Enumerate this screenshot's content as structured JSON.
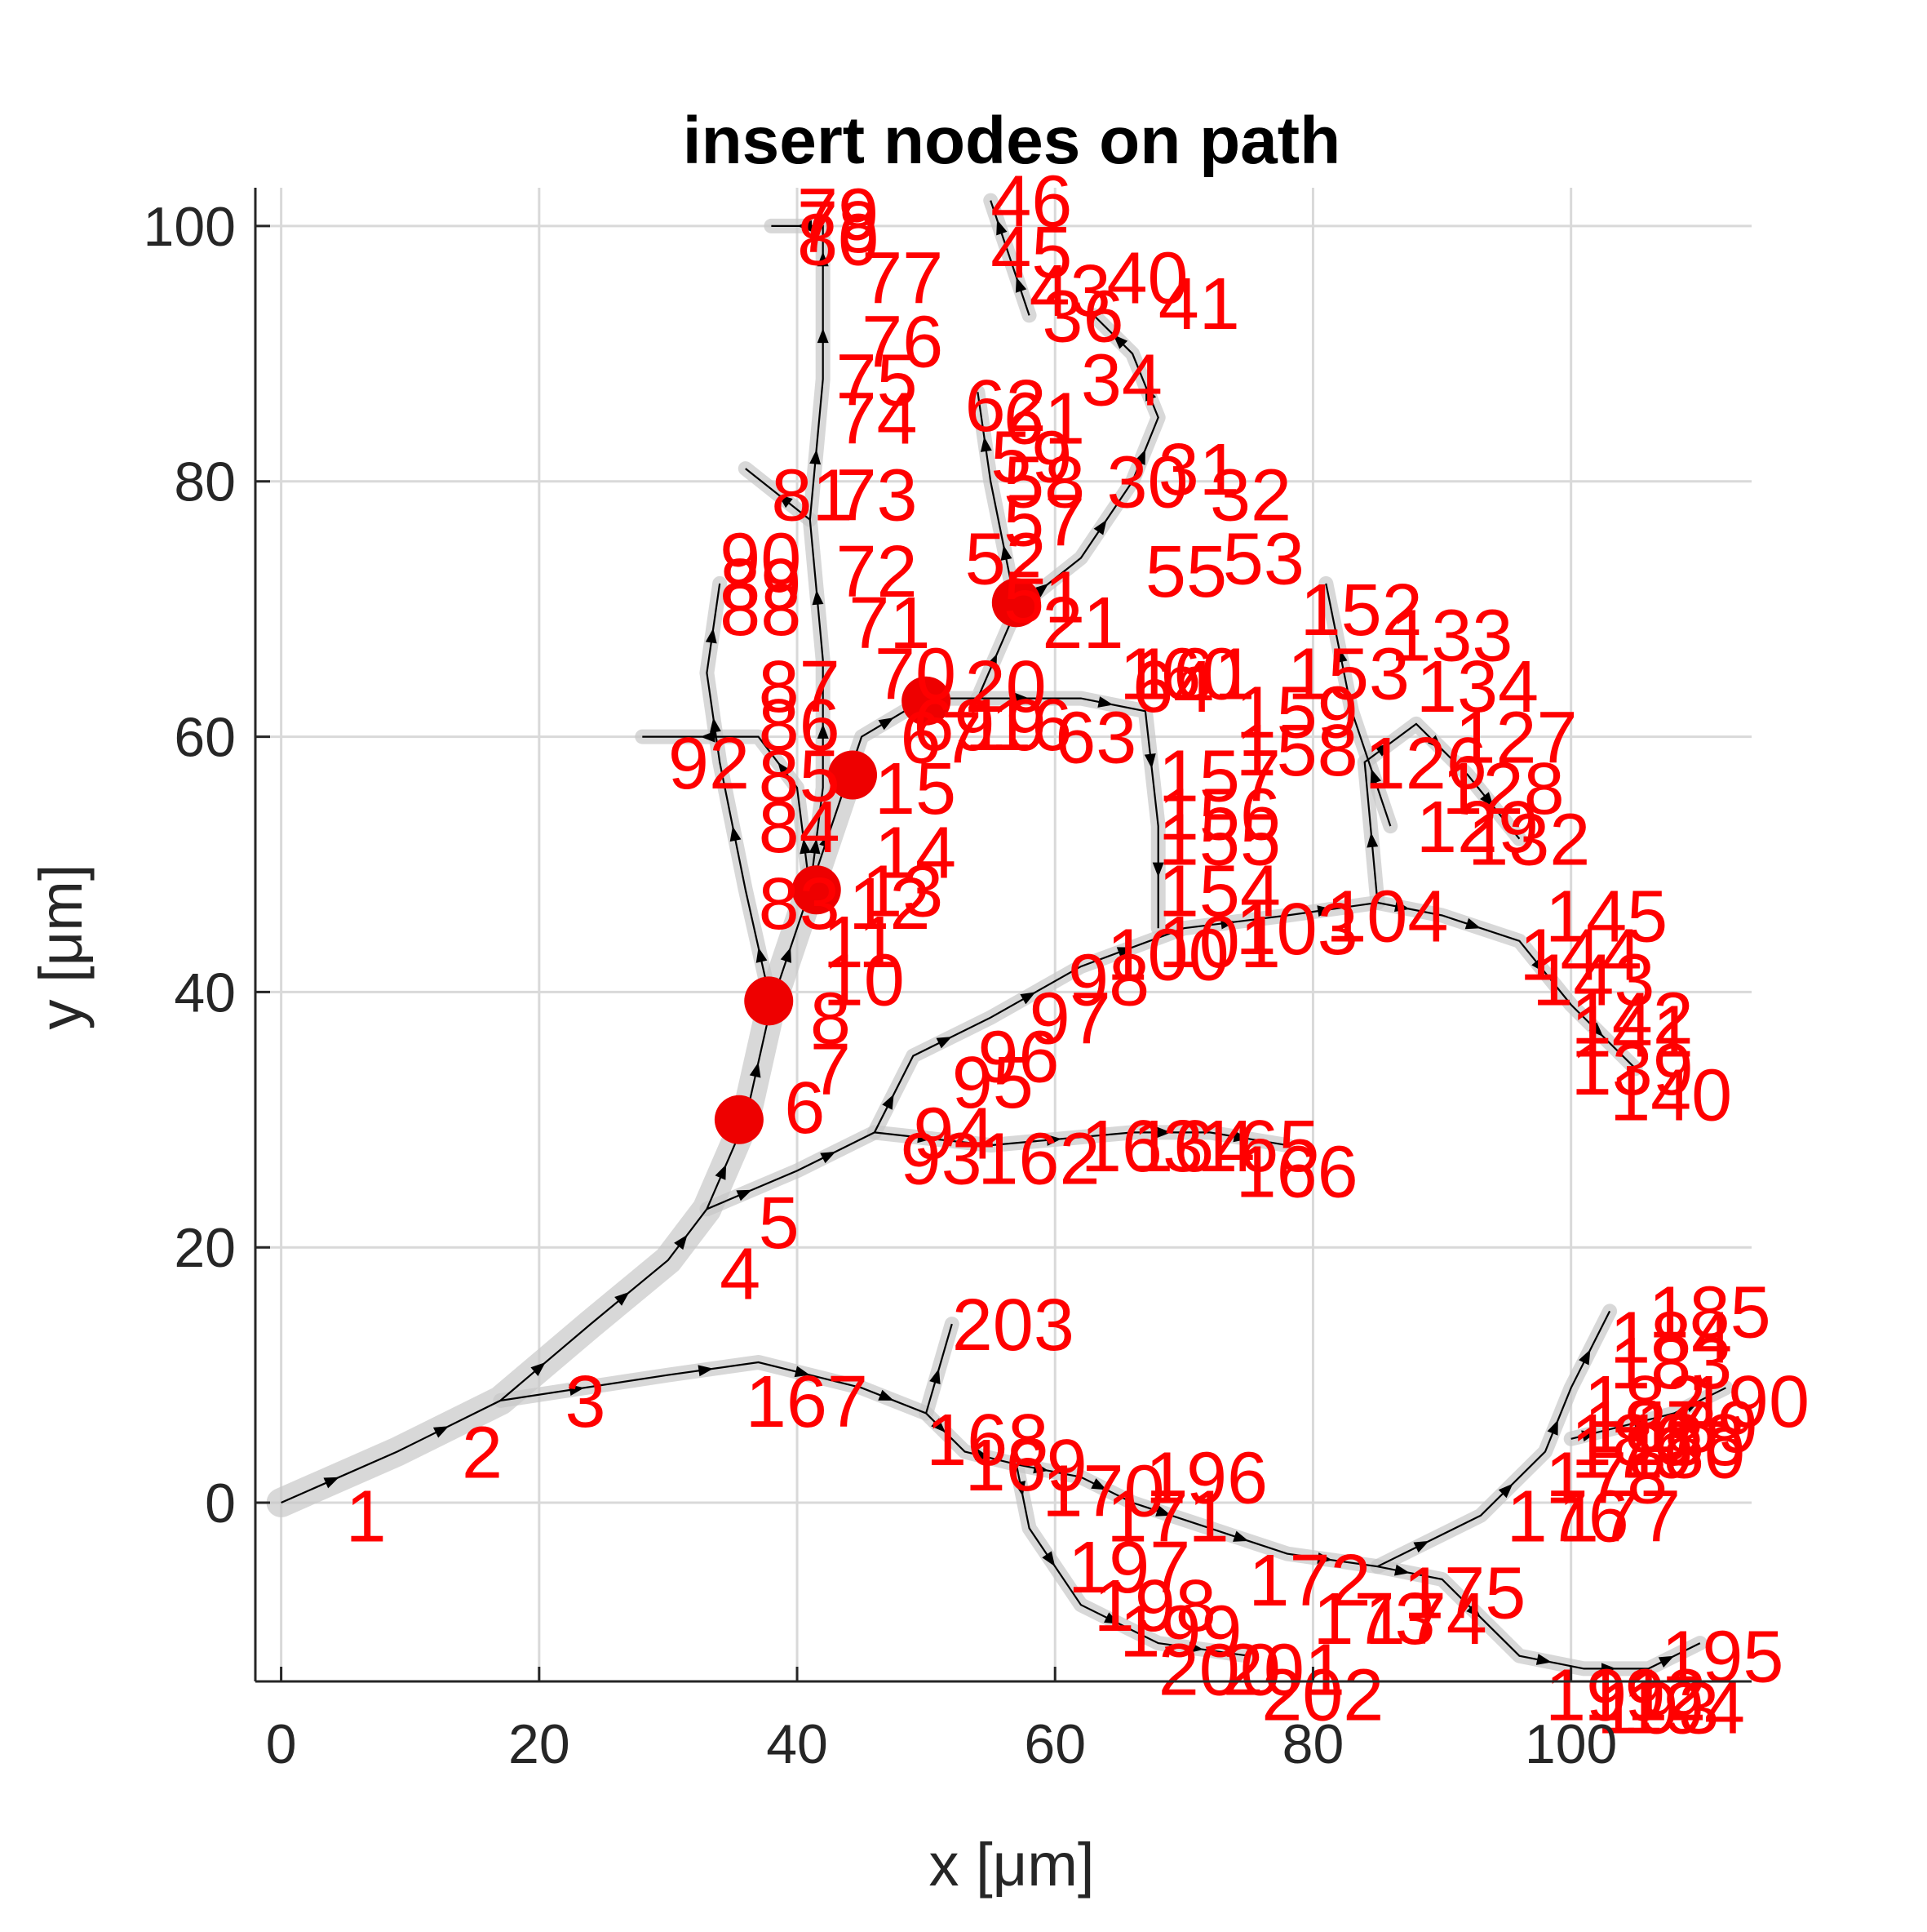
{
  "chart_data": {
    "type": "tree-graph",
    "title": "insert nodes on path",
    "xlabel": "x [μm]",
    "ylabel": "y [μm]",
    "xlim": [
      -2,
      114
    ],
    "ylim": [
      -14,
      103
    ],
    "xticks": [
      0,
      20,
      40,
      60,
      80,
      100
    ],
    "yticks": [
      0,
      20,
      40,
      60,
      80,
      100
    ],
    "xtick_labels": [
      "0",
      "20",
      "40",
      "60",
      "80",
      "100"
    ],
    "ytick_labels": [
      "0",
      "20",
      "40",
      "60",
      "80",
      "100"
    ],
    "grid": true,
    "colors": {
      "labels": "#ff0000",
      "markers": "#ee0000",
      "edges": "#000000",
      "tube": "#c8c8c8"
    },
    "trunk_path": [
      [
        0,
        0
      ],
      [
        9,
        4
      ],
      [
        17,
        8
      ],
      [
        24,
        14
      ],
      [
        30,
        19
      ],
      [
        33,
        23
      ],
      [
        36,
        30
      ],
      [
        38,
        39
      ],
      [
        41,
        48
      ],
      [
        44,
        57
      ]
    ],
    "branches": [
      {
        "name": "lower",
        "points": [
          [
            17,
            8
          ],
          [
            30,
            10
          ],
          [
            37,
            11
          ],
          [
            45,
            9
          ],
          [
            50,
            7
          ],
          [
            53,
            4
          ],
          [
            57,
            3
          ],
          [
            62,
            2
          ],
          [
            66,
            0
          ],
          [
            72,
            -2
          ],
          [
            78,
            -4
          ],
          [
            85,
            -5
          ],
          [
            90,
            -6
          ],
          [
            96,
            -12
          ],
          [
            101,
            -13
          ],
          [
            106,
            -13
          ],
          [
            110,
            -11
          ]
        ]
      },
      {
        "name": "lower-right-up",
        "points": [
          [
            85,
            -5
          ],
          [
            93,
            -1
          ],
          [
            98,
            4
          ],
          [
            100,
            9
          ],
          [
            103,
            15
          ]
        ]
      },
      {
        "name": "lower-right-arm",
        "points": [
          [
            100,
            5
          ],
          [
            104,
            6
          ],
          [
            108,
            7
          ],
          [
            112,
            9
          ]
        ]
      },
      {
        "name": "branch-203",
        "points": [
          [
            50,
            7
          ],
          [
            52,
            14
          ]
        ]
      },
      {
        "name": "lower-loop",
        "points": [
          [
            57,
            3
          ],
          [
            58,
            -2
          ],
          [
            62,
            -8
          ],
          [
            68,
            -11
          ],
          [
            75,
            -12
          ]
        ]
      },
      {
        "name": "mid",
        "points": [
          [
            33,
            23
          ],
          [
            40,
            26
          ],
          [
            46,
            29
          ],
          [
            49,
            35
          ],
          [
            55,
            38
          ],
          [
            62,
            42
          ],
          [
            70,
            45
          ],
          [
            78,
            46
          ],
          [
            85,
            47
          ],
          [
            90,
            46
          ],
          [
            96,
            44
          ],
          [
            100,
            39
          ],
          [
            105,
            34
          ]
        ]
      },
      {
        "name": "mid-lower",
        "points": [
          [
            46,
            29
          ],
          [
            55,
            28
          ],
          [
            66,
            29
          ],
          [
            72,
            29
          ],
          [
            78,
            28
          ]
        ]
      },
      {
        "name": "mid-up",
        "points": [
          [
            85,
            47
          ],
          [
            84,
            58
          ],
          [
            88,
            61
          ],
          [
            92,
            57
          ],
          [
            96,
            52
          ]
        ]
      },
      {
        "name": "right-high",
        "points": [
          [
            86,
            53
          ],
          [
            83,
            62
          ],
          [
            81,
            72
          ]
        ]
      },
      {
        "name": "center-up",
        "points": [
          [
            44,
            57
          ],
          [
            45,
            60
          ],
          [
            50,
            63
          ],
          [
            54,
            63
          ],
          [
            57,
            70
          ],
          [
            55,
            80
          ],
          [
            54,
            87
          ]
        ]
      },
      {
        "name": "center-far",
        "points": [
          [
            57,
            70
          ],
          [
            62,
            74
          ],
          [
            66,
            80
          ],
          [
            68,
            85
          ],
          [
            66,
            90
          ],
          [
            63,
            93
          ]
        ]
      },
      {
        "name": "upper-center",
        "points": [
          [
            54,
            63
          ],
          [
            62,
            63
          ],
          [
            67,
            62
          ],
          [
            68,
            53
          ],
          [
            68,
            45
          ]
        ]
      },
      {
        "name": "upper-top",
        "points": [
          [
            58,
            93
          ],
          [
            56,
            99
          ],
          [
            55,
            102
          ]
        ]
      },
      {
        "name": "left-up",
        "points": [
          [
            41,
            48
          ],
          [
            42,
            56
          ],
          [
            42,
            66
          ],
          [
            41,
            77
          ],
          [
            42,
            88
          ],
          [
            42,
            96
          ],
          [
            42,
            100
          ],
          [
            38,
            100
          ]
        ]
      },
      {
        "name": "left-side",
        "points": [
          [
            38,
            39
          ],
          [
            36,
            48
          ],
          [
            34,
            58
          ],
          [
            33,
            65
          ],
          [
            34,
            72
          ]
        ]
      },
      {
        "name": "left-spur",
        "points": [
          [
            41,
            48
          ],
          [
            40,
            56
          ],
          [
            37,
            60
          ],
          [
            28,
            60
          ]
        ]
      },
      {
        "name": "left-high",
        "points": [
          [
            41,
            77
          ],
          [
            36,
            81
          ]
        ]
      }
    ],
    "markers": [
      [
        35.5,
        30
      ],
      [
        37.8,
        39.3
      ],
      [
        41.5,
        48
      ],
      [
        44.3,
        57
      ],
      [
        50,
        62.8
      ],
      [
        57,
        70.5
      ]
    ],
    "node_labels": [
      {
        "t": "1",
        "x": 5,
        "y": -1
      },
      {
        "t": "2",
        "x": 14,
        "y": 4
      },
      {
        "t": "3",
        "x": 22,
        "y": 8
      },
      {
        "t": "4",
        "x": 34,
        "y": 18
      },
      {
        "t": "5",
        "x": 37,
        "y": 22
      },
      {
        "t": "6",
        "x": 39,
        "y": 31
      },
      {
        "t": "7",
        "x": 41,
        "y": 34
      },
      {
        "t": "8",
        "x": 41,
        "y": 38
      },
      {
        "t": "10",
        "x": 42,
        "y": 41
      },
      {
        "t": "11",
        "x": 42,
        "y": 44
      },
      {
        "t": "12",
        "x": 44,
        "y": 47
      },
      {
        "t": "13",
        "x": 45,
        "y": 48
      },
      {
        "t": "14",
        "x": 46,
        "y": 51
      },
      {
        "t": "15",
        "x": 46,
        "y": 56
      },
      {
        "t": "67",
        "x": 48,
        "y": 60
      },
      {
        "t": "83",
        "x": 37,
        "y": 47
      },
      {
        "t": "84",
        "x": 37,
        "y": 53
      },
      {
        "t": "85",
        "x": 37,
        "y": 57
      },
      {
        "t": "86",
        "x": 37,
        "y": 61
      },
      {
        "t": "87",
        "x": 37,
        "y": 64
      },
      {
        "t": "88",
        "x": 34,
        "y": 70
      },
      {
        "t": "89",
        "x": 34,
        "y": 72
      },
      {
        "t": "90",
        "x": 34,
        "y": 74
      },
      {
        "t": "92",
        "x": 30,
        "y": 58
      },
      {
        "t": "81",
        "x": 38,
        "y": 79
      },
      {
        "t": "73",
        "x": 43,
        "y": 79
      },
      {
        "t": "72",
        "x": 43,
        "y": 73
      },
      {
        "t": "71",
        "x": 44,
        "y": 69
      },
      {
        "t": "70",
        "x": 46,
        "y": 65
      },
      {
        "t": "74",
        "x": 43,
        "y": 85
      },
      {
        "t": "75",
        "x": 43,
        "y": 88
      },
      {
        "t": "76",
        "x": 45,
        "y": 91
      },
      {
        "t": "77",
        "x": 45,
        "y": 96
      },
      {
        "t": "78",
        "x": 40,
        "y": 100
      },
      {
        "t": "79",
        "x": 40,
        "y": 101
      },
      {
        "t": "80",
        "x": 40,
        "y": 99
      },
      {
        "t": "46",
        "x": 55,
        "y": 102
      },
      {
        "t": "45",
        "x": 55,
        "y": 98
      },
      {
        "t": "43",
        "x": 58,
        "y": 95
      },
      {
        "t": "40",
        "x": 64,
        "y": 96
      },
      {
        "t": "41",
        "x": 68,
        "y": 94
      },
      {
        "t": "36",
        "x": 59,
        "y": 93
      },
      {
        "t": "34",
        "x": 62,
        "y": 88
      },
      {
        "t": "62",
        "x": 53,
        "y": 86
      },
      {
        "t": "61",
        "x": 56,
        "y": 85
      },
      {
        "t": "59",
        "x": 55,
        "y": 82
      },
      {
        "t": "58",
        "x": 56,
        "y": 80
      },
      {
        "t": "57",
        "x": 56,
        "y": 77
      },
      {
        "t": "52",
        "x": 53,
        "y": 74
      },
      {
        "t": "51",
        "x": 56,
        "y": 71
      },
      {
        "t": "21",
        "x": 59,
        "y": 69
      },
      {
        "t": "20",
        "x": 53,
        "y": 64
      },
      {
        "t": "16",
        "x": 55,
        "y": 61
      },
      {
        "t": "19",
        "x": 53,
        "y": 61
      },
      {
        "t": "69",
        "x": 49,
        "y": 61
      },
      {
        "t": "63",
        "x": 60,
        "y": 60
      },
      {
        "t": "64",
        "x": 66,
        "y": 64
      },
      {
        "t": "55",
        "x": 67,
        "y": 73
      },
      {
        "t": "53",
        "x": 73,
        "y": 74
      },
      {
        "t": "32",
        "x": 72,
        "y": 79
      },
      {
        "t": "31",
        "x": 68,
        "y": 81
      },
      {
        "t": "30",
        "x": 64,
        "y": 80
      },
      {
        "t": "152",
        "x": 79,
        "y": 70
      },
      {
        "t": "153",
        "x": 78,
        "y": 65
      },
      {
        "t": "159",
        "x": 74,
        "y": 62
      },
      {
        "t": "158",
        "x": 74,
        "y": 59
      },
      {
        "t": "157",
        "x": 68,
        "y": 57
      },
      {
        "t": "156",
        "x": 68,
        "y": 54
      },
      {
        "t": "155",
        "x": 68,
        "y": 52
      },
      {
        "t": "154",
        "x": 68,
        "y": 48
      },
      {
        "t": "160",
        "x": 65,
        "y": 65
      },
      {
        "t": "161",
        "x": 66,
        "y": 65
      },
      {
        "t": "100",
        "x": 64,
        "y": 43
      },
      {
        "t": "101",
        "x": 68,
        "y": 44
      },
      {
        "t": "103",
        "x": 74,
        "y": 45
      },
      {
        "t": "104",
        "x": 81,
        "y": 46
      },
      {
        "t": "98",
        "x": 61,
        "y": 41
      },
      {
        "t": "97",
        "x": 58,
        "y": 38
      },
      {
        "t": "96",
        "x": 54,
        "y": 35
      },
      {
        "t": "95",
        "x": 52,
        "y": 33
      },
      {
        "t": "94",
        "x": 49,
        "y": 29
      },
      {
        "t": "93",
        "x": 48,
        "y": 27
      },
      {
        "t": "162",
        "x": 54,
        "y": 27
      },
      {
        "t": "163",
        "x": 62,
        "y": 28
      },
      {
        "t": "164",
        "x": 66,
        "y": 28
      },
      {
        "t": "165",
        "x": 71,
        "y": 28
      },
      {
        "t": "166",
        "x": 74,
        "y": 26
      },
      {
        "t": "126",
        "x": 84,
        "y": 58
      },
      {
        "t": "127",
        "x": 91,
        "y": 60
      },
      {
        "t": "128",
        "x": 90,
        "y": 56
      },
      {
        "t": "129",
        "x": 88,
        "y": 53
      },
      {
        "t": "132",
        "x": 92,
        "y": 52
      },
      {
        "t": "133",
        "x": 86,
        "y": 68
      },
      {
        "t": "134",
        "x": 88,
        "y": 64
      },
      {
        "t": "140",
        "x": 103,
        "y": 32
      },
      {
        "t": "139",
        "x": 100,
        "y": 34
      },
      {
        "t": "141",
        "x": 100,
        "y": 37
      },
      {
        "t": "142",
        "x": 100,
        "y": 38
      },
      {
        "t": "143",
        "x": 97,
        "y": 41
      },
      {
        "t": "144",
        "x": 96,
        "y": 43
      },
      {
        "t": "145",
        "x": 98,
        "y": 46
      },
      {
        "t": "167",
        "x": 36,
        "y": 8
      },
      {
        "t": "168",
        "x": 50,
        "y": 5
      },
      {
        "t": "169",
        "x": 53,
        "y": 3
      },
      {
        "t": "170",
        "x": 59,
        "y": 1
      },
      {
        "t": "171",
        "x": 64,
        "y": -1
      },
      {
        "t": "196",
        "x": 67,
        "y": 2
      },
      {
        "t": "172",
        "x": 75,
        "y": -6
      },
      {
        "t": "173",
        "x": 80,
        "y": -9
      },
      {
        "t": "174",
        "x": 84,
        "y": -9
      },
      {
        "t": "175",
        "x": 87,
        "y": -7
      },
      {
        "t": "176",
        "x": 95,
        "y": -1
      },
      {
        "t": "177",
        "x": 99,
        "y": -1
      },
      {
        "t": "178",
        "x": 98,
        "y": 2
      },
      {
        "t": "179",
        "x": 100,
        "y": 4
      },
      {
        "t": "180",
        "x": 104,
        "y": 4
      },
      {
        "t": "182",
        "x": 101,
        "y": 8
      },
      {
        "t": "183",
        "x": 103,
        "y": 11
      },
      {
        "t": "184",
        "x": 103,
        "y": 13
      },
      {
        "t": "185",
        "x": 106,
        "y": 15
      },
      {
        "t": "186",
        "x": 100,
        "y": 5
      },
      {
        "t": "187",
        "x": 101,
        "y": 6
      },
      {
        "t": "188",
        "x": 104,
        "y": 5
      },
      {
        "t": "189",
        "x": 105,
        "y": 6
      },
      {
        "t": "190",
        "x": 109,
        "y": 8
      },
      {
        "t": "191",
        "x": 98,
        "y": -15
      },
      {
        "t": "192",
        "x": 101,
        "y": -15
      },
      {
        "t": "193",
        "x": 102,
        "y": -16
      },
      {
        "t": "194",
        "x": 104,
        "y": -16
      },
      {
        "t": "195",
        "x": 107,
        "y": -12
      },
      {
        "t": "197",
        "x": 61,
        "y": -5
      },
      {
        "t": "198",
        "x": 63,
        "y": -8
      },
      {
        "t": "199",
        "x": 65,
        "y": -10
      },
      {
        "t": "200",
        "x": 68,
        "y": -13
      },
      {
        "t": "201",
        "x": 73,
        "y": -13
      },
      {
        "t": "202",
        "x": 76,
        "y": -15
      },
      {
        "t": "203",
        "x": 52,
        "y": 14
      }
    ]
  }
}
